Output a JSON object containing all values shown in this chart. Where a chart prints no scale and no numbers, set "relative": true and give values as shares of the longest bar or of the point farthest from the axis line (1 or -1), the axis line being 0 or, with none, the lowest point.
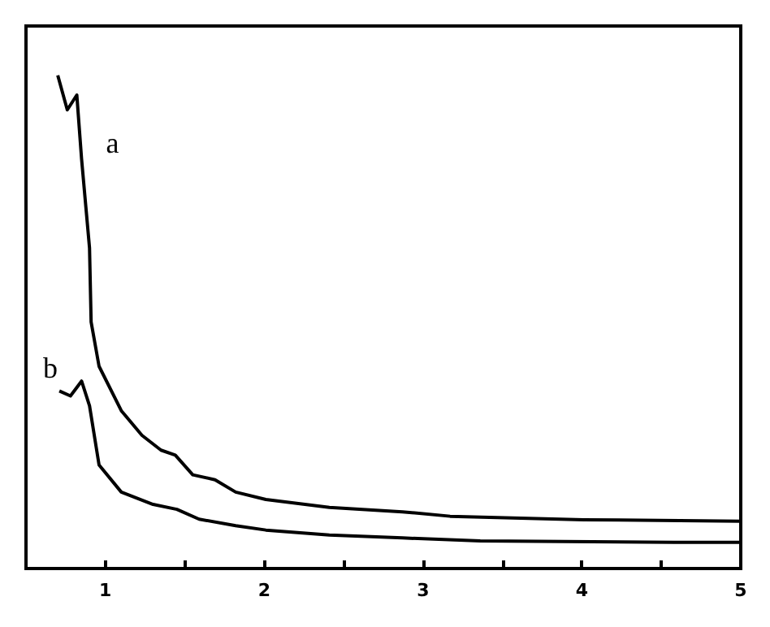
{
  "chart_data": {
    "type": "line",
    "relative": true,
    "xlim": [
      0.5,
      5
    ],
    "xticks": [
      1,
      {
        "value": 1.5,
        "label": null
      },
      2,
      {
        "value": 2.5,
        "label": null
      },
      3,
      {
        "value": 3.5,
        "label": null
      },
      4,
      {
        "value": 4.5,
        "label": null
      },
      5
    ],
    "tick_labels": "x",
    "grid": false,
    "legend": false,
    "marker": "none",
    "line_style": "solid",
    "series": [
      {
        "name": "a",
        "color": "#000000",
        "x": [
          0.7,
          0.76,
          0.82,
          0.85,
          0.9,
          0.91,
          0.96,
          1.1,
          1.23,
          1.35,
          1.44,
          1.55,
          1.69,
          1.82,
          2.01,
          2.41,
          2.87,
          3.17,
          4.01,
          5.0
        ],
        "values": [
          1.0,
          0.93,
          0.96,
          0.83,
          0.65,
          0.5,
          0.41,
          0.32,
          0.27,
          0.24,
          0.23,
          0.19,
          0.18,
          0.155,
          0.14,
          0.124,
          0.115,
          0.106,
          0.099,
          0.096
        ]
      },
      {
        "name": "b",
        "color": "#000000",
        "x": [
          0.71,
          0.78,
          0.85,
          0.9,
          0.96,
          1.1,
          1.3,
          1.45,
          1.59,
          1.82,
          2.01,
          2.41,
          2.87,
          3.36,
          4.58,
          5.0
        ],
        "values": [
          0.36,
          0.35,
          0.38,
          0.33,
          0.21,
          0.155,
          0.13,
          0.12,
          0.1,
          0.087,
          0.078,
          0.068,
          0.062,
          0.056,
          0.053,
          0.053
        ]
      }
    ]
  }
}
